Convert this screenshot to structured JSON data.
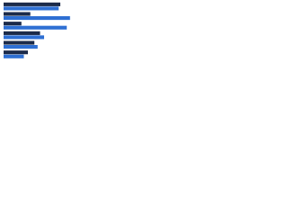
{
  "chart_data": {
    "type": "bar",
    "orientation": "horizontal",
    "categories": [
      null,
      null,
      null,
      null,
      null,
      null
    ],
    "series": [
      {
        "color": "#1c2b4a",
        "values": [
          70,
          33,
          22,
          45,
          38,
          30
        ]
      },
      {
        "color": "#2e6fd3",
        "values": [
          68,
          82,
          78,
          50,
          42,
          25
        ]
      }
    ],
    "xlim": [
      0,
      100
    ]
  }
}
